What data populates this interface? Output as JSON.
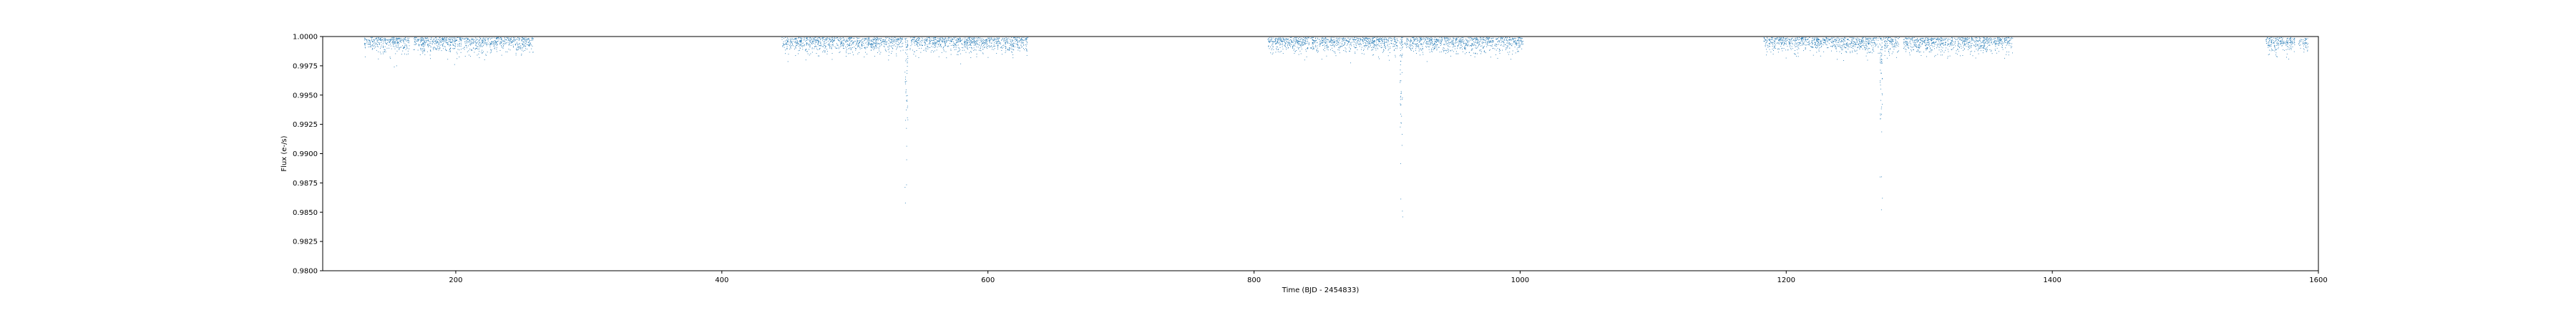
{
  "chart_data": {
    "type": "scatter",
    "title": "",
    "xlabel": "Time (BJD - 2454833)",
    "ylabel": "Flux (e-/s)",
    "xlim": [
      100,
      1600
    ],
    "ylim": [
      0.98,
      1.0
    ],
    "xticks": [
      "200",
      "400",
      "600",
      "800",
      "1000",
      "1200",
      "1400",
      "1600"
    ],
    "yticks": [
      "1.0000",
      "0.9975",
      "0.9950",
      "0.9925",
      "0.9900",
      "0.9875",
      "0.9850",
      "0.9825",
      "0.9800"
    ],
    "grid": false,
    "marker_color": "#1f77b4",
    "observation_segments": [
      [
        131,
        165
      ],
      [
        168,
        258
      ],
      [
        445,
        536
      ],
      [
        541,
        630
      ],
      [
        810,
        908
      ],
      [
        913,
        1002
      ],
      [
        1183,
        1269
      ],
      [
        1273,
        1285
      ],
      [
        1288,
        1370
      ],
      [
        1560,
        1582
      ],
      [
        1588,
        1592
      ]
    ],
    "transits": [
      {
        "x": 538.5,
        "depth": 0.0158
      },
      {
        "x": 910.5,
        "depth": 0.0163
      },
      {
        "x": 1271,
        "depth": 0.016
      },
      {
        "x": 1586,
        "depth": 0.0015
      }
    ]
  }
}
